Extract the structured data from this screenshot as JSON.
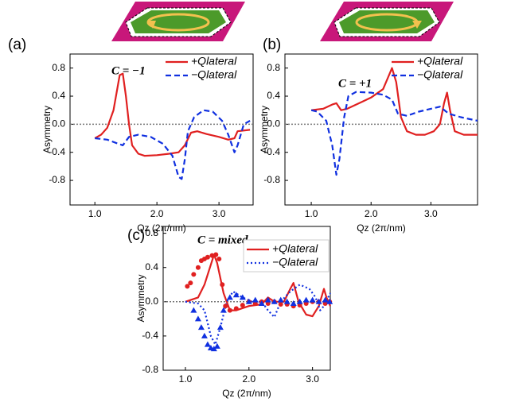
{
  "chart_data": [
    {
      "type": "line",
      "panel": "(a)",
      "annotation": "C = −1",
      "xlabel": "Qz (2π/nm)",
      "ylabel": "Asymmetry",
      "xlim": [
        0.6,
        3.55
      ],
      "ylim": [
        -1.15,
        1.0
      ],
      "xticks": [
        {
          "value": 1,
          "label": "1.0"
        },
        {
          "value": 2,
          "label": "2.0"
        },
        {
          "value": 3,
          "label": "3.0"
        }
      ],
      "yticks": [
        -0.8,
        -0.4,
        {
          "value": 0,
          "label": "0.0"
        },
        0.4,
        0.8
      ],
      "hline": 0,
      "legend": "upper right",
      "series": [
        {
          "name": "+Qlateral",
          "color": "#e02020",
          "style": "solid",
          "x": [
            1.0,
            1.1,
            1.2,
            1.3,
            1.4,
            1.45,
            1.5,
            1.55,
            1.6,
            1.7,
            1.8,
            2.0,
            2.2,
            2.35,
            2.45,
            2.55,
            2.65,
            2.8,
            3.0,
            3.15,
            3.25,
            3.3,
            3.5
          ],
          "values": [
            -0.2,
            -0.15,
            -0.05,
            0.2,
            0.7,
            0.72,
            0.4,
            0.0,
            -0.3,
            -0.42,
            -0.45,
            -0.44,
            -0.42,
            -0.4,
            -0.3,
            -0.12,
            -0.1,
            -0.14,
            -0.18,
            -0.22,
            -0.2,
            -0.1,
            -0.08
          ]
        },
        {
          "name": "−Qlateral",
          "color": "#1030e0",
          "style": "dashed",
          "x": [
            1.0,
            1.2,
            1.35,
            1.45,
            1.55,
            1.7,
            1.9,
            2.1,
            2.25,
            2.35,
            2.4,
            2.45,
            2.5,
            2.6,
            2.75,
            2.9,
            3.05,
            3.15,
            3.25,
            3.3,
            3.4,
            3.5
          ],
          "values": [
            -0.2,
            -0.22,
            -0.27,
            -0.3,
            -0.18,
            -0.15,
            -0.18,
            -0.28,
            -0.45,
            -0.75,
            -0.78,
            -0.5,
            -0.1,
            0.1,
            0.2,
            0.18,
            0.05,
            -0.15,
            -0.4,
            -0.3,
            0.0,
            0.05
          ]
        }
      ]
    },
    {
      "type": "line",
      "panel": "(b)",
      "annotation": "C = +1",
      "xlabel": "Qz (2π/nm)",
      "ylabel": "Asymmetry",
      "xlim": [
        0.56,
        3.78
      ],
      "ylim": [
        -1.15,
        1.0
      ],
      "xticks": [
        {
          "value": 1,
          "label": "1.0"
        },
        {
          "value": 2,
          "label": "2.0"
        },
        {
          "value": 3,
          "label": "3.0"
        }
      ],
      "yticks": [
        -0.8,
        -0.4,
        {
          "value": 0,
          "label": "0.0"
        },
        0.4,
        0.8
      ],
      "hline": 0,
      "legend": "upper right",
      "series": [
        {
          "name": "+Qlateral",
          "color": "#e02020",
          "style": "solid",
          "x": [
            1.0,
            1.2,
            1.35,
            1.42,
            1.5,
            1.6,
            1.8,
            2.0,
            2.2,
            2.3,
            2.35,
            2.42,
            2.5,
            2.6,
            2.75,
            2.9,
            3.05,
            3.15,
            3.22,
            3.27,
            3.32,
            3.4,
            3.55,
            3.78
          ],
          "values": [
            0.2,
            0.22,
            0.28,
            0.3,
            0.2,
            0.22,
            0.3,
            0.38,
            0.5,
            0.7,
            0.8,
            0.6,
            0.1,
            -0.1,
            -0.15,
            -0.15,
            -0.1,
            0.0,
            0.3,
            0.45,
            0.2,
            -0.1,
            -0.15,
            -0.15
          ]
        },
        {
          "name": "−Qlateral",
          "color": "#1030e0",
          "style": "dashed",
          "x": [
            1.0,
            1.1,
            1.25,
            1.35,
            1.42,
            1.47,
            1.55,
            1.62,
            1.75,
            2.0,
            2.2,
            2.35,
            2.45,
            2.6,
            2.8,
            3.0,
            3.15,
            3.3,
            3.5,
            3.78
          ],
          "values": [
            0.2,
            0.18,
            0.05,
            -0.3,
            -0.72,
            -0.5,
            0.1,
            0.4,
            0.46,
            0.45,
            0.42,
            0.35,
            0.15,
            0.12,
            0.18,
            0.22,
            0.25,
            0.15,
            0.1,
            0.05
          ]
        }
      ]
    },
    {
      "type": "line",
      "panel": "(c)",
      "annotation": "C = mixed",
      "xlabel": "Qz (2π/nm)",
      "ylabel": "Asymmetry",
      "xlim": [
        0.65,
        3.28
      ],
      "ylim": [
        -0.8,
        0.88
      ],
      "xticks": [
        {
          "value": 1,
          "label": "1.0"
        },
        {
          "value": 2,
          "label": "2.0"
        },
        {
          "value": 3,
          "label": "3.0"
        }
      ],
      "yticks": [
        -0.8,
        -0.4,
        {
          "value": 0,
          "label": "0.0"
        },
        0.4,
        0.8
      ],
      "hline": 0,
      "legend": "upper right",
      "series": [
        {
          "name": "+Qlateral",
          "color": "#e02020",
          "style": "solid",
          "x": [
            1.0,
            1.2,
            1.3,
            1.45,
            1.5,
            1.6,
            1.7,
            1.8,
            2.0,
            2.2,
            2.3,
            2.4,
            2.55,
            2.65,
            2.7,
            2.78,
            2.9,
            3.0,
            3.1,
            3.18,
            3.22,
            3.28
          ],
          "values": [
            0.0,
            0.05,
            0.2,
            0.55,
            0.45,
            0.1,
            -0.1,
            -0.1,
            -0.05,
            -0.03,
            0.05,
            0.0,
            0.0,
            0.15,
            0.22,
            0.0,
            -0.15,
            -0.17,
            -0.05,
            0.15,
            0.05,
            -0.05
          ]
        },
        {
          "name": "−Qlateral",
          "color": "#1030e0",
          "style": "dotted",
          "x": [
            1.0,
            1.2,
            1.3,
            1.4,
            1.47,
            1.55,
            1.65,
            1.75,
            1.9,
            2.05,
            2.2,
            2.3,
            2.4,
            2.5,
            2.65,
            2.8,
            2.95,
            3.05,
            3.12,
            3.18,
            3.28
          ],
          "values": [
            0.0,
            -0.02,
            -0.1,
            -0.4,
            -0.5,
            -0.3,
            0.0,
            0.12,
            0.05,
            0.0,
            0.0,
            -0.1,
            -0.18,
            0.0,
            0.12,
            0.2,
            0.15,
            0.05,
            -0.1,
            -0.05,
            0.1
          ]
        },
        {
          "color": "#e02020",
          "style": "markers",
          "marker": "circle",
          "x": [
            1.03,
            1.08,
            1.13,
            1.2,
            1.25,
            1.3,
            1.35,
            1.42,
            1.48,
            1.53,
            1.58,
            1.63,
            1.7,
            1.8,
            1.9,
            2.0,
            2.1,
            2.2,
            2.3,
            2.4,
            2.5,
            2.6,
            2.7,
            2.8,
            2.9,
            3.0,
            3.1,
            3.2,
            3.27
          ],
          "values": [
            0.18,
            0.22,
            0.32,
            0.4,
            0.48,
            0.5,
            0.52,
            0.54,
            0.55,
            0.5,
            0.2,
            -0.05,
            -0.1,
            -0.08,
            -0.04,
            0.0,
            -0.02,
            0.0,
            -0.02,
            0.0,
            -0.03,
            -0.03,
            -0.05,
            -0.04,
            -0.02,
            0.0,
            0.0,
            -0.02,
            0.0
          ]
        },
        {
          "color": "#1030e0",
          "style": "markers",
          "marker": "triangle",
          "x": [
            1.13,
            1.2,
            1.25,
            1.3,
            1.35,
            1.4,
            1.45,
            1.5,
            1.55,
            1.6,
            1.7,
            1.8,
            1.9,
            2.0,
            2.1,
            2.2,
            2.3,
            2.4,
            2.5,
            2.6,
            2.7,
            2.8,
            2.9,
            3.0,
            3.1,
            3.2,
            3.27
          ],
          "values": [
            -0.1,
            -0.2,
            -0.3,
            -0.4,
            -0.5,
            -0.54,
            -0.55,
            -0.52,
            -0.3,
            -0.1,
            0.05,
            0.08,
            0.05,
            0.0,
            0.02,
            -0.02,
            0.02,
            0.0,
            0.02,
            0.0,
            -0.02,
            0.0,
            0.02,
            0.02,
            0.0,
            0.02,
            0.0
          ]
        }
      ]
    }
  ]
}
